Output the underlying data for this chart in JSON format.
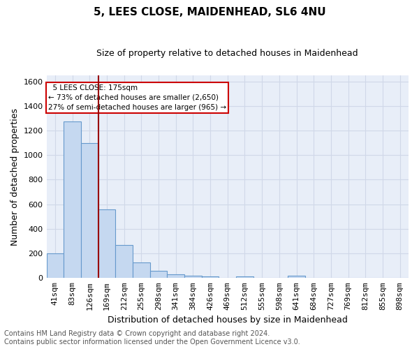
{
  "title": "5, LEES CLOSE, MAIDENHEAD, SL6 4NU",
  "subtitle": "Size of property relative to detached houses in Maidenhead",
  "xlabel": "Distribution of detached houses by size in Maidenhead",
  "ylabel": "Number of detached properties",
  "footnote1": "Contains HM Land Registry data © Crown copyright and database right 2024.",
  "footnote2": "Contains public sector information licensed under the Open Government Licence v3.0.",
  "categories": [
    "41sqm",
    "83sqm",
    "126sqm",
    "169sqm",
    "212sqm",
    "255sqm",
    "298sqm",
    "341sqm",
    "384sqm",
    "426sqm",
    "469sqm",
    "512sqm",
    "555sqm",
    "598sqm",
    "641sqm",
    "684sqm",
    "727sqm",
    "769sqm",
    "812sqm",
    "855sqm",
    "898sqm"
  ],
  "values": [
    200,
    1275,
    1100,
    560,
    270,
    125,
    60,
    30,
    20,
    15,
    0,
    15,
    0,
    0,
    20,
    0,
    0,
    0,
    0,
    0,
    0
  ],
  "bar_color": "#c5d8f0",
  "bar_edge_color": "#6699cc",
  "background_color": "#e8eef8",
  "grid_color": "#d0d8e8",
  "annotation_box_text": "  5 LEES CLOSE: 175sqm  \n← 73% of detached houses are smaller (2,650)\n27% of semi-detached houses are larger (965) →",
  "annotation_box_color": "#ffffff",
  "annotation_box_edge_color": "#cc0000",
  "property_line_x": 2.5,
  "property_line_color": "#990000",
  "ylim": [
    0,
    1650
  ],
  "yticks": [
    0,
    200,
    400,
    600,
    800,
    1000,
    1200,
    1400,
    1600
  ],
  "title_fontsize": 11,
  "subtitle_fontsize": 9,
  "xlabel_fontsize": 9,
  "ylabel_fontsize": 9,
  "tick_fontsize": 8,
  "footnote_fontsize": 7
}
